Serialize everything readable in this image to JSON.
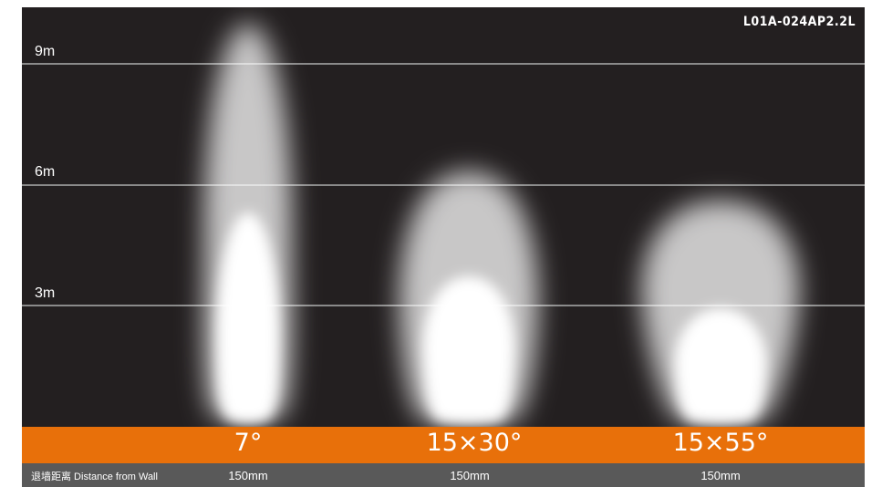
{
  "model_code": "L01A-024AP2.2L",
  "distance_markers": [
    {
      "label": "9m",
      "meters": 9
    },
    {
      "label": "6m",
      "meters": 6
    },
    {
      "label": "3m",
      "meters": 3
    }
  ],
  "beams": [
    {
      "angle_label": "7°",
      "distance_value": "150mm"
    },
    {
      "angle_label": "15×30°",
      "distance_value": "150mm"
    },
    {
      "angle_label": "15×55°",
      "distance_value": "150mm"
    }
  ],
  "distance_title": "退墙距离 Distance from Wall",
  "colors": {
    "background": "#231f20",
    "accent_bar": "#e8700a",
    "footer_bar": "#595959",
    "grid_line": "#8a8a8a",
    "beam": "#ffffff"
  }
}
